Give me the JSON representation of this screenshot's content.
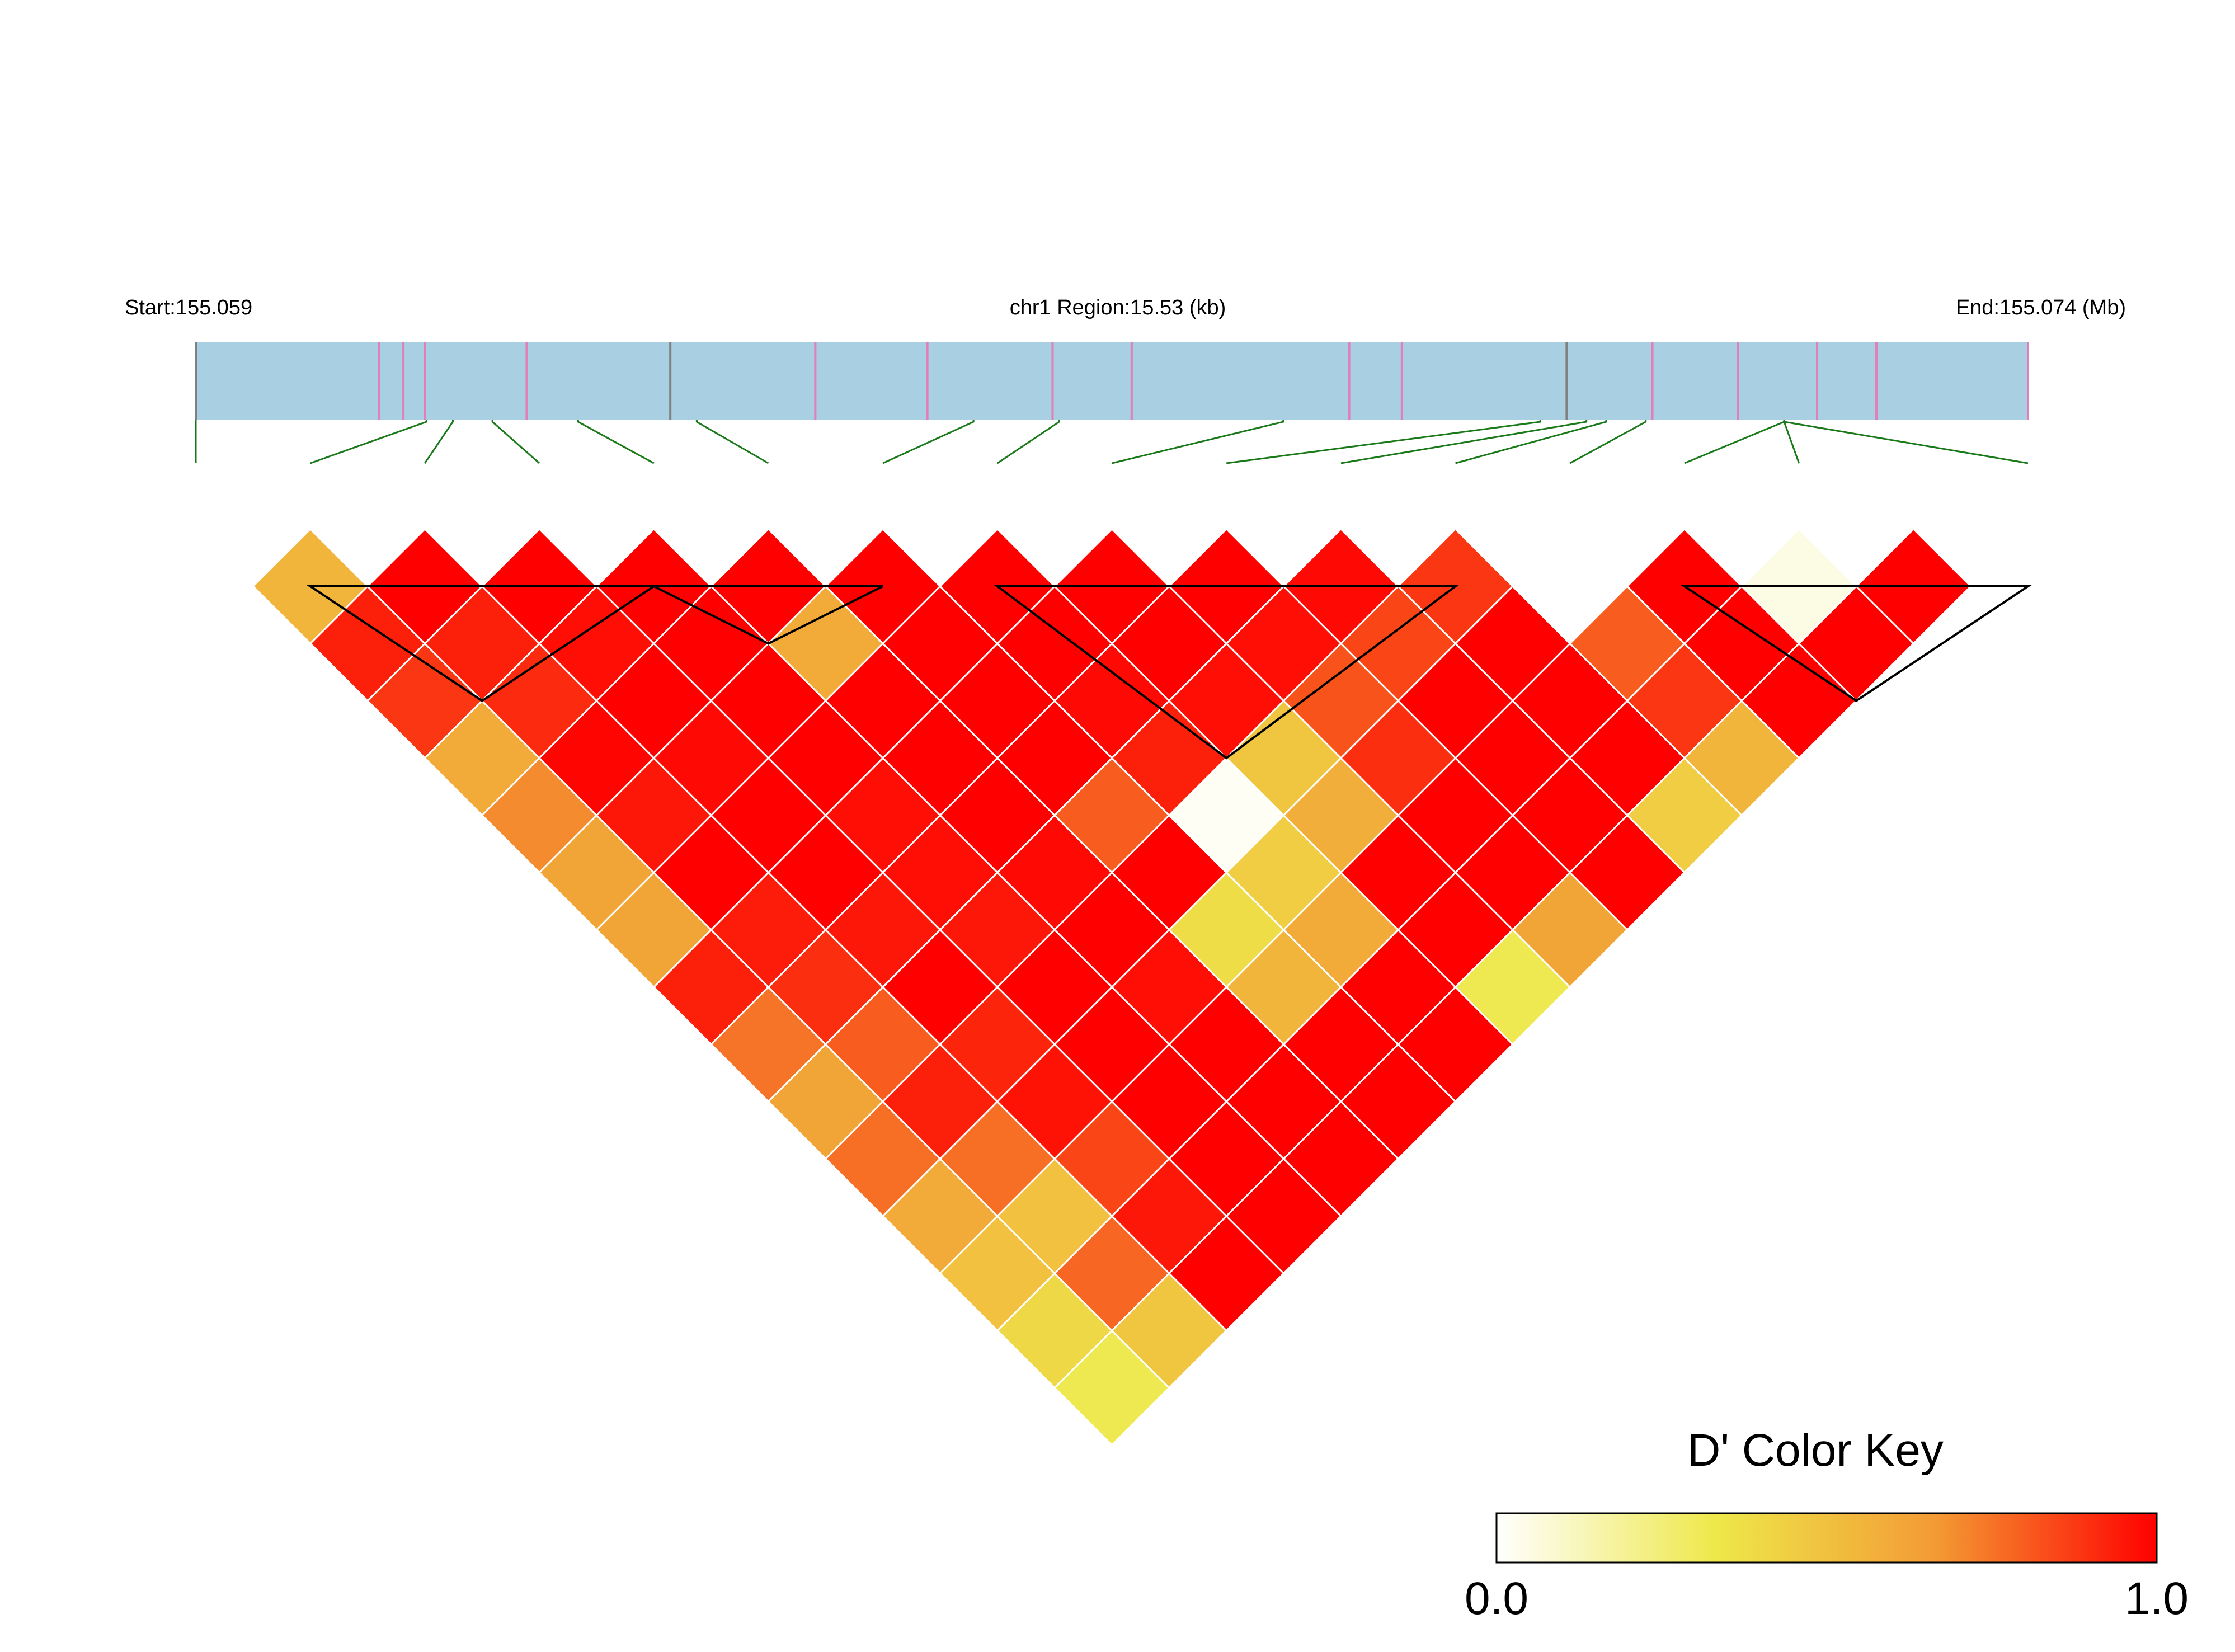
{
  "chart_data": {
    "type": "heatmap",
    "header": {
      "start_label": "Start:155.059",
      "region_label": "chr1 Region:15.53 (kb)",
      "end_label": "End:155.074 (Mb)"
    },
    "snp_positions_kb": [
      0.0,
      2.78,
      3.15,
      3.48,
      5.02,
      7.2,
      9.4,
      11.1,
      13.0,
      14.2,
      17.5,
      18.3,
      20.8,
      22.1,
      23.4,
      24.6,
      25.5,
      27.8
    ],
    "snp_colors": [
      "#808080",
      "#e07fb8",
      "#e07fb8",
      "#e07fb8",
      "#e07fb8",
      "#808080",
      "#e07fb8",
      "#e07fb8",
      "#e07fb8",
      "#e07fb8",
      "#e07fb8",
      "#e07fb8",
      "#808080",
      "#e07fb8",
      "#e07fb8",
      "#e07fb8",
      "#e07fb8",
      "#e07fb8"
    ],
    "n_markers": 16,
    "marker_map_index": [
      0,
      1,
      2,
      3,
      4,
      5,
      6,
      7,
      8,
      9,
      10,
      11,
      12,
      13,
      14,
      15
    ],
    "track_positions_kb": [
      0.0,
      3.5,
      3.9,
      4.5,
      5.8,
      7.6,
      11.8,
      13.1,
      16.5,
      20.4,
      21.1,
      21.4,
      22.0,
      24.1
    ],
    "ld_dprime": [
      [
        null,
        0.55,
        0.93,
        0.88,
        0.6,
        0.7,
        0.62,
        0.62,
        0.93,
        0.75,
        0.62,
        0.76,
        0.6,
        0.5,
        0.4,
        0.32
      ],
      [
        null,
        null,
        1.0,
        0.93,
        0.91,
        0.99,
        0.95,
        1.0,
        0.94,
        0.9,
        0.8,
        0.93,
        0.76,
        0.5,
        0.78,
        0.48
      ],
      [
        null,
        null,
        null,
        1.0,
        0.97,
        1.0,
        0.98,
        1.0,
        1.0,
        0.95,
        1.0,
        0.92,
        0.96,
        0.85,
        0.95,
        1.0
      ],
      [
        null,
        null,
        null,
        null,
        1.0,
        1.0,
        1.0,
        1.0,
        0.97,
        0.97,
        0.95,
        1.0,
        1.0,
        1.0,
        1.0,
        1.0
      ],
      [
        null,
        null,
        null,
        null,
        null,
        1.0,
        0.6,
        1.0,
        1.0,
        1.0,
        0.98,
        1.0,
        0.97,
        1.0,
        1.0,
        1.0
      ],
      [
        null,
        null,
        null,
        null,
        null,
        null,
        1.0,
        1.0,
        1.0,
        1.0,
        0.8,
        1.0,
        0.38,
        0.55,
        1.0,
        1.0
      ],
      [
        null,
        null,
        null,
        null,
        null,
        null,
        null,
        1.0,
        1.0,
        0.98,
        0.93,
        0.02,
        0.45,
        0.6,
        1.0,
        1.0
      ],
      [
        null,
        null,
        null,
        null,
        null,
        null,
        null,
        null,
        1.0,
        1.0,
        0.97,
        0.48,
        0.58,
        1.0,
        1.0,
        0.32
      ],
      [
        null,
        null,
        null,
        null,
        null,
        null,
        null,
        null,
        null,
        1.0,
        0.97,
        0.82,
        0.9,
        1.0,
        1.0,
        0.62
      ],
      [
        null,
        null,
        null,
        null,
        null,
        null,
        null,
        null,
        null,
        null,
        0.98,
        0.85,
        1.0,
        1.0,
        1.0,
        1.0
      ],
      [
        null,
        null,
        null,
        null,
        null,
        null,
        null,
        null,
        null,
        null,
        null,
        0.88,
        1.0,
        1.0,
        1.0,
        0.45
      ],
      [
        null,
        null,
        null,
        null,
        null,
        null,
        null,
        null,
        null,
        null,
        null,
        null,
        0.0,
        0.8,
        0.88,
        0.55
      ],
      [
        null,
        null,
        null,
        null,
        null,
        null,
        null,
        null,
        null,
        null,
        null,
        null,
        null,
        1.0,
        1.0,
        1.0
      ],
      [
        null,
        null,
        null,
        null,
        null,
        null,
        null,
        null,
        null,
        null,
        null,
        null,
        null,
        null,
        0.05,
        1.0
      ],
      [
        null,
        null,
        null,
        null,
        null,
        null,
        null,
        null,
        null,
        null,
        null,
        null,
        null,
        null,
        null,
        1.0
      ],
      [
        null,
        null,
        null,
        null,
        null,
        null,
        null,
        null,
        null,
        null,
        null,
        null,
        null,
        null,
        null,
        null
      ]
    ],
    "blocks": [
      [
        1,
        3
      ],
      [
        4,
        5
      ],
      [
        7,
        10
      ],
      [
        13,
        15
      ]
    ],
    "color_key": {
      "title": "D' Color Key",
      "min_label": "0.0",
      "max_label": "1.0",
      "range": [
        0.0,
        1.0
      ],
      "colors": [
        "#ffffff",
        "#eee84a",
        "#f39a34",
        "#ff0000"
      ]
    }
  },
  "colors": {
    "gene_track": "#a9cfe2",
    "snp_connector": "#1a7a1a",
    "cell_border": "#ffffff",
    "block_outline": "#000000"
  }
}
